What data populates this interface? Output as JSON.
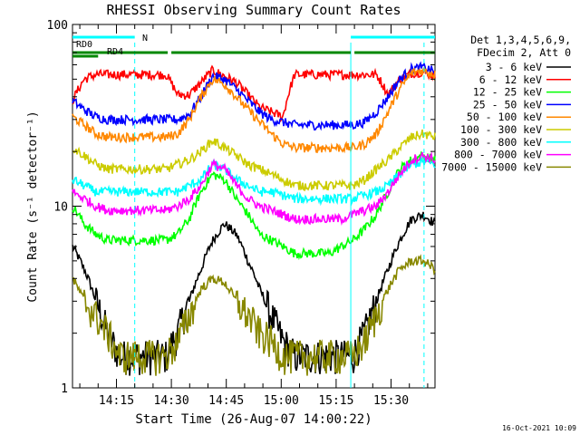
{
  "chart_data": {
    "type": "line",
    "title": "RHESSI Observing Summary Count Rates",
    "xlabel": "Start Time (26-Aug-07 14:00:22)",
    "ylabel": "Count Rate (s⁻¹ detector⁻¹)",
    "y_scale": "log",
    "ylim": [
      1,
      100
    ],
    "xlim": [
      "14:03",
      "15:42"
    ],
    "y_ticks": [
      "1",
      "10",
      "100"
    ],
    "x_ticks": [
      "14:15",
      "14:30",
      "14:45",
      "15:00",
      "15:15",
      "15:30"
    ],
    "timestamp": "16-Oct-2021 10:09",
    "legend_header": [
      "Det 1,3,4,5,6,9,",
      "FDecim 2, Att 0"
    ],
    "legend_position": "right",
    "flags": [
      {
        "label": "N",
        "color": "#00ffff",
        "segments": [
          [
            "14:03",
            "14:20"
          ],
          [
            "15:19",
            "15:42"
          ]
        ]
      },
      {
        "label": "RD0",
        "color": "#008800",
        "segments": [
          [
            "14:03",
            "14:29"
          ],
          [
            "14:30",
            "14:53"
          ],
          [
            "14:53",
            "15:19"
          ],
          [
            "15:20",
            "15:42"
          ]
        ]
      },
      {
        "label": "RD4",
        "color": "#008800",
        "segments": [
          [
            "14:03",
            "14:10"
          ]
        ]
      }
    ],
    "markers": [
      {
        "time": "14:20",
        "color": "#00ffff",
        "style": "dashed"
      },
      {
        "time": "15:19",
        "color": "#00ffff",
        "style": "solid"
      },
      {
        "time": "15:39",
        "color": "#00ffff",
        "style": "dashed"
      }
    ],
    "series": [
      {
        "name": "3 - 6 keV",
        "color": "#000000",
        "values": [
          6,
          4.5,
          3,
          2,
          1.5,
          1.5,
          1.5,
          1.5,
          1.5,
          2,
          3,
          4.5,
          6.5,
          8,
          7,
          5,
          3.5,
          2.5,
          1.8,
          1.5,
          1.5,
          1.5,
          1.5,
          1.5,
          1.5,
          2,
          3,
          4.5,
          6.5,
          8.5,
          9,
          8
        ]
      },
      {
        "name": "6 - 12 keV",
        "color": "#ff0000",
        "values": [
          38,
          50,
          53,
          53,
          53,
          53,
          53,
          53,
          53,
          41,
          41,
          48,
          56,
          52,
          48,
          41,
          35,
          33,
          31,
          53,
          53,
          53,
          53,
          53,
          53,
          53,
          53,
          41,
          50,
          54,
          55,
          52
        ]
      },
      {
        "name": "12 - 25 keV",
        "color": "#00ff00",
        "values": [
          10,
          8,
          7,
          6.5,
          6.5,
          6.5,
          6.5,
          6.5,
          6.5,
          7,
          8.5,
          12,
          15,
          14,
          11,
          9,
          7,
          6.5,
          6,
          5.5,
          5.5,
          5.5,
          5.5,
          6,
          6.5,
          7.5,
          9,
          12,
          16,
          18,
          19,
          18
        ]
      },
      {
        "name": "25 - 50 keV",
        "color": "#0000ff",
        "values": [
          38,
          34,
          31,
          30,
          30,
          30,
          30,
          30,
          30,
          30,
          32,
          40,
          52,
          50,
          44,
          38,
          33,
          30,
          29,
          28,
          28,
          28,
          28,
          28,
          28,
          29,
          33,
          40,
          50,
          57,
          58,
          55
        ]
      },
      {
        "name": "50 - 100 keV",
        "color": "#ff8800",
        "values": [
          31,
          28,
          25,
          24,
          24,
          24,
          24,
          24,
          24,
          25,
          30,
          40,
          50,
          47,
          40,
          34,
          29,
          25,
          22,
          21,
          21,
          21,
          21,
          21,
          21,
          22,
          25,
          33,
          44,
          54,
          56,
          53
        ]
      },
      {
        "name": "100 - 300 keV",
        "color": "#cccc00",
        "values": [
          21,
          19,
          17,
          16,
          16,
          16,
          16,
          16,
          16,
          17,
          18,
          20,
          23,
          21,
          19,
          17,
          16,
          15,
          14,
          13,
          13,
          13,
          13,
          13,
          13,
          14,
          16,
          18,
          21,
          24,
          25,
          24
        ]
      },
      {
        "name": "300 - 800 keV",
        "color": "#00ffff",
        "values": [
          14,
          13,
          12,
          12,
          12,
          12,
          12,
          12,
          12,
          12,
          13,
          14,
          17,
          16,
          14,
          13,
          12,
          12,
          11.5,
          11,
          11,
          11,
          11,
          11,
          11,
          11.5,
          12,
          13,
          15,
          17,
          17.5,
          17
        ]
      },
      {
        "name": "800 - 7000 keV",
        "color": "#ff00ff",
        "values": [
          12,
          11,
          10,
          9.5,
          9.5,
          9.5,
          9.5,
          9.5,
          9.5,
          10,
          11,
          13,
          17,
          16,
          13,
          11,
          10,
          9.5,
          9,
          8.5,
          8.5,
          8.5,
          8.5,
          8.5,
          9,
          9.5,
          10,
          12,
          15,
          18,
          19,
          18
        ]
      },
      {
        "name": "7000 - 15000 keV",
        "color": "#888800",
        "values": [
          4,
          3,
          2.5,
          2,
          1.5,
          1.5,
          1.5,
          1.5,
          1.5,
          1.8,
          2.5,
          3.5,
          4,
          3.8,
          3,
          2.5,
          2,
          1.8,
          1.5,
          1.5,
          1.5,
          1.5,
          1.5,
          1.5,
          1.5,
          1.8,
          2.5,
          3.5,
          4.5,
          5,
          5,
          4.5
        ]
      }
    ]
  }
}
